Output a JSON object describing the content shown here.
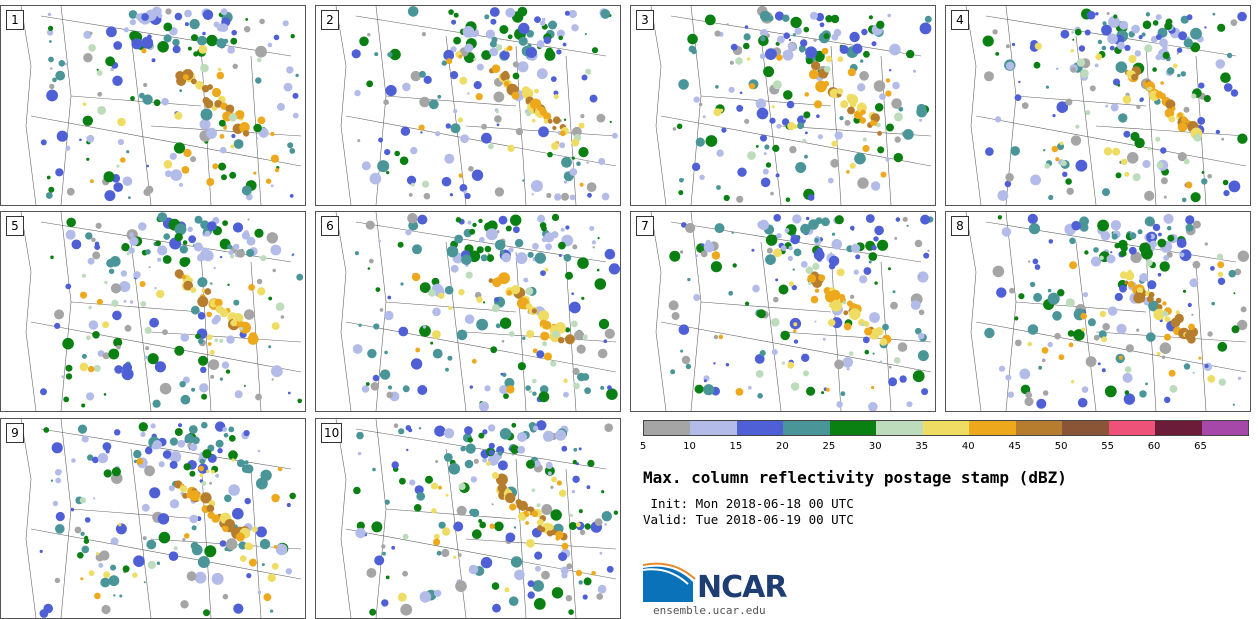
{
  "chart_data": {
    "type": "heatmap",
    "title": "Max. column reflectivity postage stamp (dBZ)",
    "init": " Init: Mon 2018-06-18 00 UTC",
    "valid": "Valid: Tue 2018-06-19 00 UTC",
    "members": [
      "1",
      "2",
      "3",
      "4",
      "5",
      "6",
      "7",
      "8",
      "9",
      "10"
    ],
    "colorbar": {
      "ticks": [
        "5",
        "10",
        "15",
        "20",
        "25",
        "30",
        "35",
        "40",
        "45",
        "50",
        "55",
        "60",
        "65"
      ],
      "colors": [
        "#a5a5a5",
        "#b3bce8",
        "#4f5fd6",
        "#4a9598",
        "#0a8012",
        "#bcdcbc",
        "#efdc62",
        "#eda81c",
        "#b67d2e",
        "#8a5536",
        "#ef5279",
        "#6a1c38",
        "#a548a9"
      ]
    }
  },
  "branding": {
    "logo_text": "NCAR",
    "url": "ensemble.ucar.edu"
  }
}
